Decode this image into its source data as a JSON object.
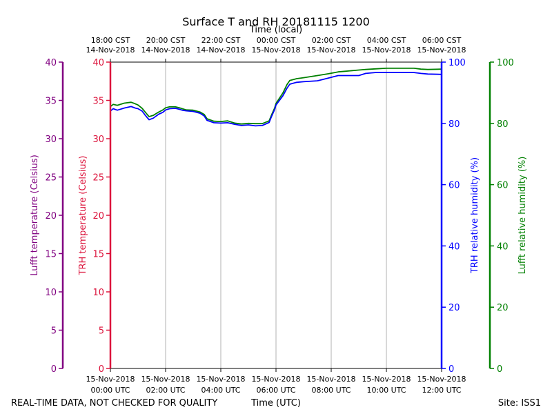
{
  "chart_data": {
    "type": "line",
    "title": "Surface T and RH 20181115 1200",
    "top_axis": {
      "label": "Time (local)",
      "ticks": [
        {
          "line1": "18:00 CST",
          "line2": "14-Nov-2018"
        },
        {
          "line1": "20:00 CST",
          "line2": "14-Nov-2018"
        },
        {
          "line1": "22:00 CST",
          "line2": "14-Nov-2018"
        },
        {
          "line1": "00:00 CST",
          "line2": "15-Nov-2018"
        },
        {
          "line1": "02:00 CST",
          "line2": "15-Nov-2018"
        },
        {
          "line1": "04:00 CST",
          "line2": "15-Nov-2018"
        },
        {
          "line1": "06:00 CST",
          "line2": "15-Nov-2018"
        }
      ]
    },
    "bottom_axis": {
      "label": "Time (UTC)",
      "xlim": [
        0,
        12
      ],
      "tick_values": [
        0,
        2,
        4,
        6,
        8,
        10,
        12
      ],
      "ticks": [
        {
          "line1": "15-Nov-2018",
          "line2": "00:00 UTC"
        },
        {
          "line1": "15-Nov-2018",
          "line2": "02:00 UTC"
        },
        {
          "line1": "15-Nov-2018",
          "line2": "04:00 UTC"
        },
        {
          "line1": "15-Nov-2018",
          "line2": "06:00 UTC"
        },
        {
          "line1": "15-Nov-2018",
          "line2": "08:00 UTC"
        },
        {
          "line1": "15-Nov-2018",
          "line2": "10:00 UTC"
        },
        {
          "line1": "15-Nov-2018",
          "line2": "12:00 UTC"
        }
      ]
    },
    "left_axes": [
      {
        "label": "Lufft temperature (Celsius)",
        "ylim": [
          0,
          40
        ],
        "ticks": [
          0,
          5,
          10,
          15,
          20,
          25,
          30,
          35,
          40
        ],
        "color": "#800080"
      },
      {
        "label": "TRH temperature (Celsius)",
        "ylim": [
          0,
          40
        ],
        "ticks": [
          0,
          5,
          10,
          15,
          20,
          25,
          30,
          35,
          40
        ],
        "color": "#dc143c"
      }
    ],
    "right_axes": [
      {
        "label": "TRH relative humidity (%)",
        "ylim": [
          0,
          100
        ],
        "ticks": [
          0,
          20,
          40,
          60,
          80,
          100
        ],
        "color": "#0000ff"
      },
      {
        "label": "Lufft relative humidity (%)",
        "ylim": [
          0,
          100
        ],
        "ticks": [
          0,
          20,
          40,
          60,
          80,
          100
        ],
        "color": "#008000"
      }
    ],
    "series": [
      {
        "name": "TRH relative humidity (%)",
        "color": "#0000ff",
        "x": [
          0,
          0.1,
          0.25,
          0.5,
          0.75,
          0.9,
          1.0,
          1.15,
          1.25,
          1.4,
          1.55,
          1.75,
          1.9,
          2.0,
          2.15,
          2.35,
          2.5,
          2.6,
          2.75,
          3.0,
          3.25,
          3.4,
          3.5,
          3.75,
          4.0,
          4.25,
          4.5,
          4.75,
          5.0,
          5.25,
          5.5,
          5.75,
          5.85,
          5.95,
          6.0,
          6.25,
          6.4,
          6.5,
          6.75,
          7.0,
          7.5,
          7.9,
          8.25,
          8.5,
          9.0,
          9.25,
          9.6,
          10.0,
          10.5,
          11.0,
          11.25,
          11.5,
          12.0
        ],
        "values": [
          84.0,
          84.8,
          84.3,
          85.0,
          85.5,
          85.0,
          84.8,
          84.0,
          82.8,
          81.2,
          81.7,
          83.0,
          83.6,
          84.4,
          84.8,
          84.9,
          84.6,
          84.3,
          84.1,
          83.9,
          83.3,
          82.4,
          81.0,
          80.2,
          80.1,
          80.2,
          79.7,
          79.3,
          79.5,
          79.2,
          79.3,
          80.3,
          82.5,
          84.5,
          86.0,
          89.0,
          91.5,
          92.8,
          93.4,
          93.6,
          93.9,
          94.8,
          95.6,
          95.6,
          95.6,
          96.3,
          96.6,
          96.6,
          96.6,
          96.6,
          96.3,
          96.1,
          96.0
        ]
      },
      {
        "name": "Lufft relative humidity (%)",
        "color": "#008000",
        "x": [
          0,
          0.1,
          0.25,
          0.5,
          0.75,
          0.9,
          1.0,
          1.15,
          1.25,
          1.4,
          1.55,
          1.75,
          1.9,
          2.0,
          2.15,
          2.35,
          2.5,
          2.6,
          2.75,
          3.0,
          3.25,
          3.4,
          3.5,
          3.75,
          4.0,
          4.25,
          4.5,
          4.75,
          5.0,
          5.25,
          5.5,
          5.75,
          5.85,
          5.95,
          6.0,
          6.25,
          6.4,
          6.5,
          6.75,
          7.0,
          7.5,
          7.9,
          8.25,
          8.5,
          9.0,
          9.25,
          9.6,
          10.0,
          10.5,
          11.0,
          11.25,
          11.5,
          12.0
        ],
        "values": [
          85.5,
          86.2,
          85.9,
          86.6,
          86.9,
          86.4,
          86.0,
          84.9,
          83.8,
          82.2,
          82.6,
          83.7,
          84.4,
          85.1,
          85.4,
          85.4,
          85.1,
          84.8,
          84.4,
          84.3,
          83.7,
          82.9,
          81.5,
          80.7,
          80.6,
          80.8,
          80.1,
          79.8,
          80.0,
          79.9,
          79.9,
          80.8,
          83.0,
          85.0,
          86.5,
          89.9,
          92.7,
          94.0,
          94.6,
          94.9,
          95.6,
          96.2,
          96.8,
          97.0,
          97.4,
          97.6,
          97.8,
          98.0,
          98.0,
          98.0,
          97.7,
          97.6,
          97.7
        ]
      }
    ],
    "grid": true
  },
  "footer": {
    "disclaimer": "REAL-TIME DATA, NOT CHECKED FOR QUALITY",
    "site": "Site: ISS1"
  }
}
